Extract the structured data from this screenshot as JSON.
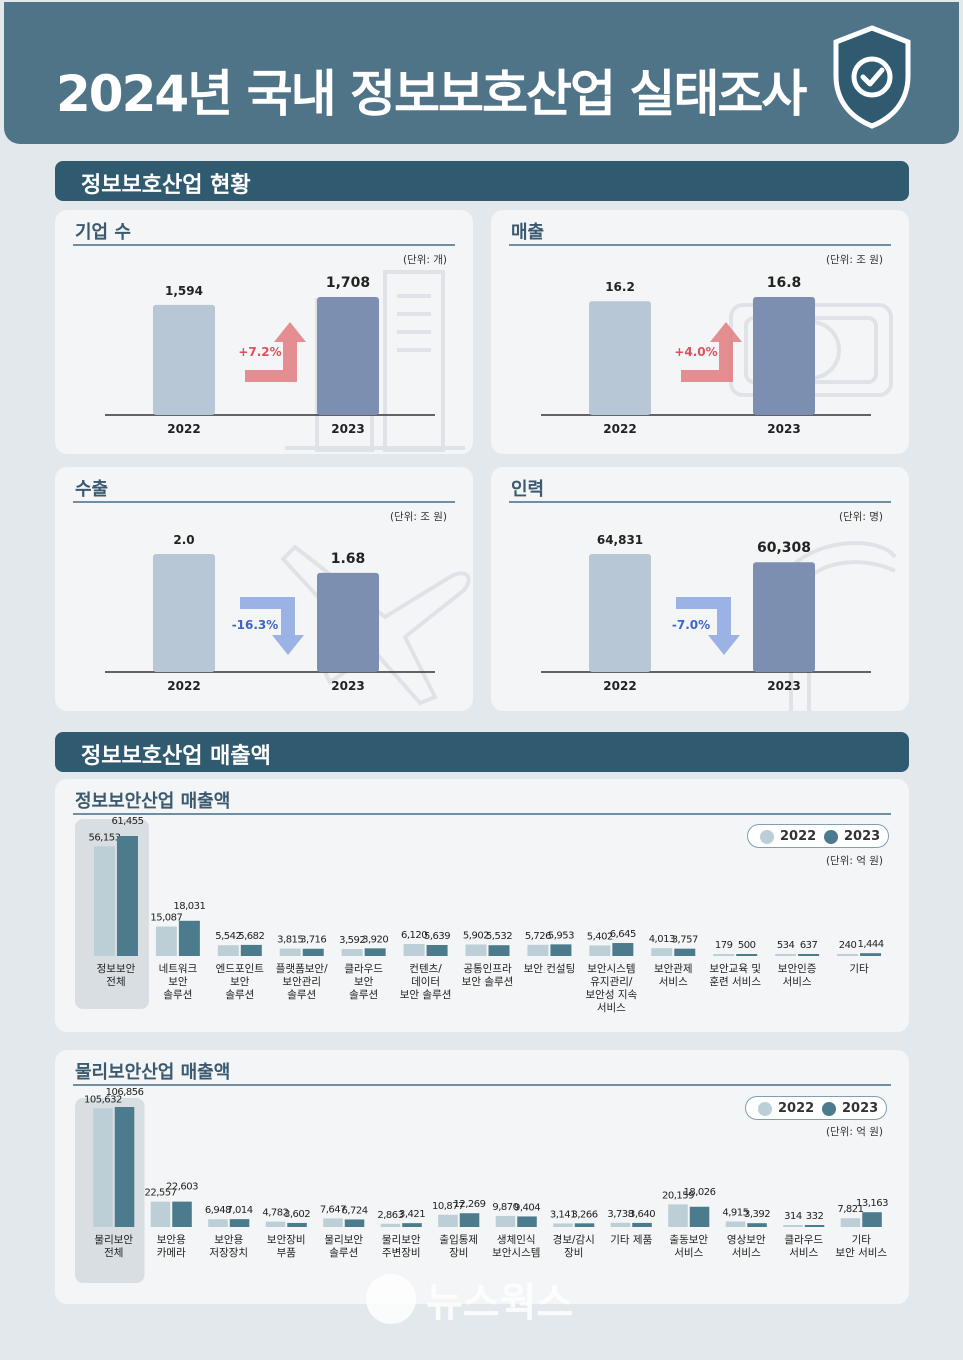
{
  "header": {
    "title": "2024년 국내 정보보호산업 실태조사"
  },
  "sections": {
    "overview": "정보보호산업 현황",
    "revenue": "정보보호산업 매출액"
  },
  "colors": {
    "y2022": "#b8c7d6",
    "y2023": "#7c8fb0",
    "up": "#e07b80",
    "down": "#8aa6e0",
    "info2022": "#bccfd6",
    "info2023": "#4d7b8e"
  },
  "chart_data": [
    {
      "type": "bar",
      "title": "기업 수",
      "unit": "(단위: 개)",
      "categories": [
        "2022",
        "2023"
      ],
      "values": [
        1594,
        1708
      ],
      "value_labels": [
        "1,594",
        "1,708"
      ],
      "change": "+7.2%"
    },
    {
      "type": "bar",
      "title": "매출",
      "unit": "(단위: 조 원)",
      "categories": [
        "2022",
        "2023"
      ],
      "values": [
        16.2,
        16.8
      ],
      "value_labels": [
        "16.2",
        "16.8"
      ],
      "change": "+4.0%"
    },
    {
      "type": "bar",
      "title": "수출",
      "unit": "(단위: 조 원)",
      "categories": [
        "2022",
        "2023"
      ],
      "values": [
        2.0,
        1.68
      ],
      "value_labels": [
        "2.0",
        "1.68"
      ],
      "change": "-16.3%"
    },
    {
      "type": "bar",
      "title": "인력",
      "unit": "(단위: 명)",
      "categories": [
        "2022",
        "2023"
      ],
      "values": [
        64831,
        60308
      ],
      "value_labels": [
        "64,831",
        "60,308"
      ],
      "change": "-7.0%"
    },
    {
      "type": "bar",
      "title": "정보보안산업 매출액",
      "unit": "(단위: 억 원)",
      "legend": [
        "2022",
        "2023"
      ],
      "categories": [
        "정보보안\n전체",
        "네트워크\n보안\n솔루션",
        "엔드포인트\n보안\n솔루션",
        "플랫폼보안/\n보안관리\n솔루션",
        "클라우드\n보안\n솔루션",
        "컨텐츠/\n데이터\n보안 솔루션",
        "공통인프라\n보안 솔루션",
        "보안 컨설팅",
        "보안시스템\n유지관리/\n보안성 지속\n서비스",
        "보안관제\n서비스",
        "보안교육 및\n훈련 서비스",
        "보안인증\n서비스",
        "기타"
      ],
      "series": [
        {
          "name": "2022",
          "values": [
            56153,
            15087,
            5542,
            3815,
            3592,
            6120,
            5902,
            5726,
            5402,
            4013,
            179,
            534,
            240
          ],
          "labels": [
            "56,153",
            "15,087",
            "5,542",
            "3,815",
            "3,592",
            "6,120",
            "5,902",
            "5,726",
            "5,402",
            "4,013",
            "179",
            "534",
            "240"
          ]
        },
        {
          "name": "2023",
          "values": [
            61455,
            18031,
            5682,
            3716,
            3920,
            5639,
            5532,
            5953,
            6645,
            3757,
            500,
            637,
            1444
          ],
          "labels": [
            "61,455",
            "18,031",
            "5,682",
            "3,716",
            "3,920",
            "5,639",
            "5,532",
            "5,953",
            "6,645",
            "3,757",
            "500",
            "637",
            "1,444"
          ]
        }
      ]
    },
    {
      "type": "bar",
      "title": "물리보안산업 매출액",
      "unit": "(단위: 억 원)",
      "legend": [
        "2022",
        "2023"
      ],
      "categories": [
        "물리보안\n전체",
        "보안용\n카메라",
        "보안용\n저장장치",
        "보안장비\n부품",
        "물리보안\n솔루션",
        "물리보안\n주변장비",
        "출입통제\n장비",
        "생체인식\n보안시스템",
        "경보/감시\n장비",
        "기타 제품",
        "출동보안\n서비스",
        "영상보안\n서비스",
        "클라우드\n서비스",
        "기타\n보안 서비스"
      ],
      "series": [
        {
          "name": "2022",
          "values": [
            105632,
            22557,
            6948,
            4782,
            7647,
            2863,
            10877,
            9870,
            3141,
            3738,
            20159,
            4915,
            314,
            7821
          ],
          "labels": [
            "105,632",
            "22,557",
            "6,948",
            "4,782",
            "7,647",
            "2,863",
            "10,877",
            "9,870",
            "3,141",
            "3,738",
            "20,159",
            "4,915",
            "314",
            "7,821"
          ]
        },
        {
          "name": "2023",
          "values": [
            106856,
            22603,
            7014,
            3602,
            6724,
            3421,
            12269,
            9404,
            3266,
            3640,
            18026,
            3392,
            332,
            13163
          ],
          "labels": [
            "106,856",
            "22,603",
            "7,014",
            "3,602",
            "6,724",
            "3,421",
            "12,269",
            "9,404",
            "3,266",
            "3,640",
            "18,026",
            "3,392",
            "332",
            "13,163"
          ]
        }
      ]
    }
  ],
  "watermark": "뉴스웍스"
}
